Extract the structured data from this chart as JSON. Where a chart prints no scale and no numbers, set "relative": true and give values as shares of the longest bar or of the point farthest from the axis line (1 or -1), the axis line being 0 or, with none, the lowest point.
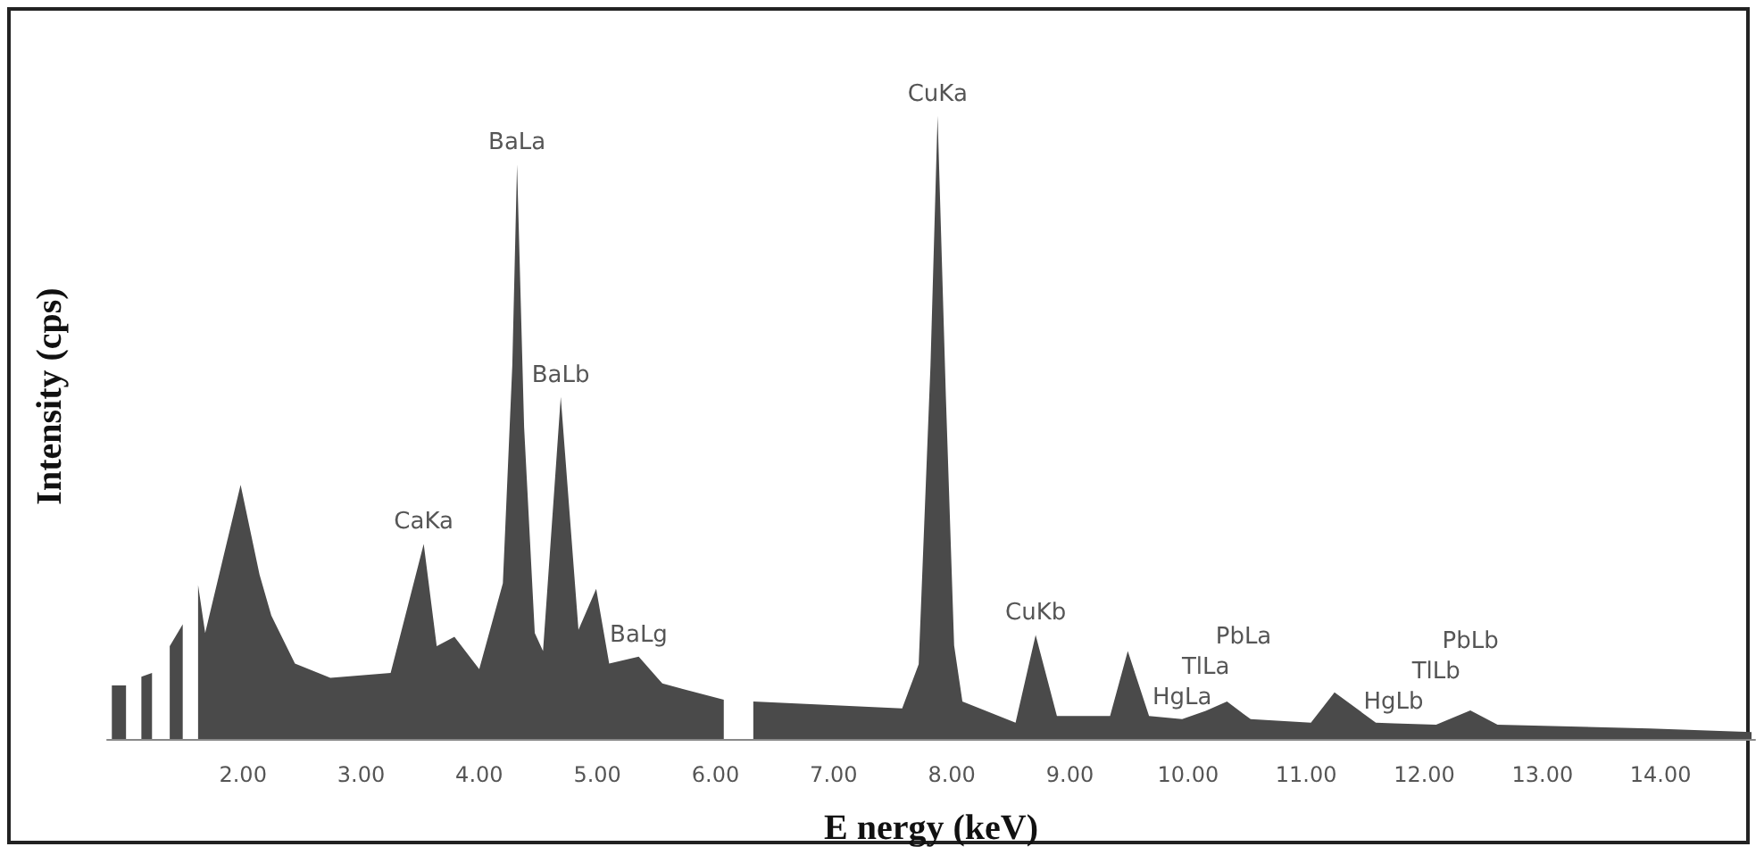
{
  "chart_data": {
    "type": "area",
    "relative": true,
    "xlabel": "E nergy (keV)",
    "ylabel": "Intensity (cps)",
    "grid": false,
    "marker": "none",
    "xlim": [
      0.85,
      14.8
    ],
    "xticks": [
      {
        "value": 2,
        "label": "2.00"
      },
      {
        "value": 3,
        "label": "3.00"
      },
      {
        "value": 4,
        "label": "4.00"
      },
      {
        "value": 5,
        "label": "5.00"
      },
      {
        "value": 6,
        "label": "6.00"
      },
      {
        "value": 7,
        "label": "7.00"
      },
      {
        "value": 8,
        "label": "8.00"
      },
      {
        "value": 9,
        "label": "9.00"
      },
      {
        "value": 10,
        "label": "10.00"
      },
      {
        "value": 11,
        "label": "11.00"
      },
      {
        "value": 12,
        "label": "12.00"
      },
      {
        "value": 13,
        "label": "13.00"
      },
      {
        "value": 14,
        "label": "14.00"
      }
    ],
    "series": [
      {
        "color": "#4a4a4a",
        "x": [
          0.89,
          1.01,
          1.07,
          1.14,
          1.23,
          1.3,
          1.38,
          1.49,
          1.55,
          1.62,
          1.68,
          1.98,
          2.14,
          2.24,
          2.44,
          2.74,
          3.25,
          3.53,
          3.64,
          3.79,
          4.0,
          4.2,
          4.28,
          4.32,
          4.38,
          4.47,
          4.54,
          4.69,
          4.84,
          4.99,
          5.1,
          5.35,
          5.55,
          6.07,
          6.17,
          6.32,
          7.58,
          7.72,
          7.82,
          7.88,
          7.95,
          8.02,
          8.09,
          8.54,
          8.71,
          8.89,
          9.34,
          9.49,
          9.67,
          9.95,
          10.15,
          10.33,
          10.47,
          10.53,
          11.04,
          11.24,
          11.59,
          11.74,
          12.1,
          12.39,
          12.62,
          13.91,
          14.77
        ],
        "values": [
          0.086,
          0.086,
          null,
          0.1,
          0.106,
          null,
          0.149,
          0.184,
          null,
          0.247,
          0.17,
          0.408,
          0.264,
          0.198,
          0.121,
          0.098,
          0.106,
          0.313,
          0.149,
          0.164,
          0.112,
          0.25,
          0.6,
          0.922,
          0.5,
          0.17,
          0.141,
          0.549,
          0.175,
          0.241,
          0.121,
          0.132,
          0.089,
          0.063,
          null,
          0.06,
          0.049,
          0.12,
          0.6,
          1,
          0.55,
          0.15,
          0.06,
          0.026,
          0.167,
          0.037,
          0.037,
          0.141,
          0.037,
          0.032,
          0.045,
          0.06,
          0.04,
          0.032,
          0.026,
          0.075,
          0.026,
          0.025,
          0.023,
          0.046,
          0.023,
          0.017,
          0.011
        ]
      }
    ],
    "annotations": [
      {
        "text": "CaKa",
        "x": 3.53,
        "y": 0.313
      },
      {
        "text": "BaLa",
        "x": 4.32,
        "y": 0.922
      },
      {
        "text": "BaLb",
        "x": 4.69,
        "y": 0.549
      },
      {
        "text": "BaLg",
        "x": 5.35,
        "y": 0.132
      },
      {
        "text": "CuKa",
        "x": 7.88,
        "y": 1
      },
      {
        "text": "CuKb",
        "x": 8.71,
        "y": 0.167
      },
      {
        "text": "HgLa",
        "x": 9.95,
        "y": 0.032
      },
      {
        "text": "TlLa",
        "x": 10.15,
        "y": 0.045
      },
      {
        "text": "PbLa",
        "x": 10.47,
        "y": 0.04
      },
      {
        "text": "HgLb",
        "x": 11.74,
        "y": 0.025
      },
      {
        "text": "TlLb",
        "x": 12.1,
        "y": 0.023
      },
      {
        "text": "PbLb",
        "x": 12.39,
        "y": 0.046
      }
    ]
  }
}
